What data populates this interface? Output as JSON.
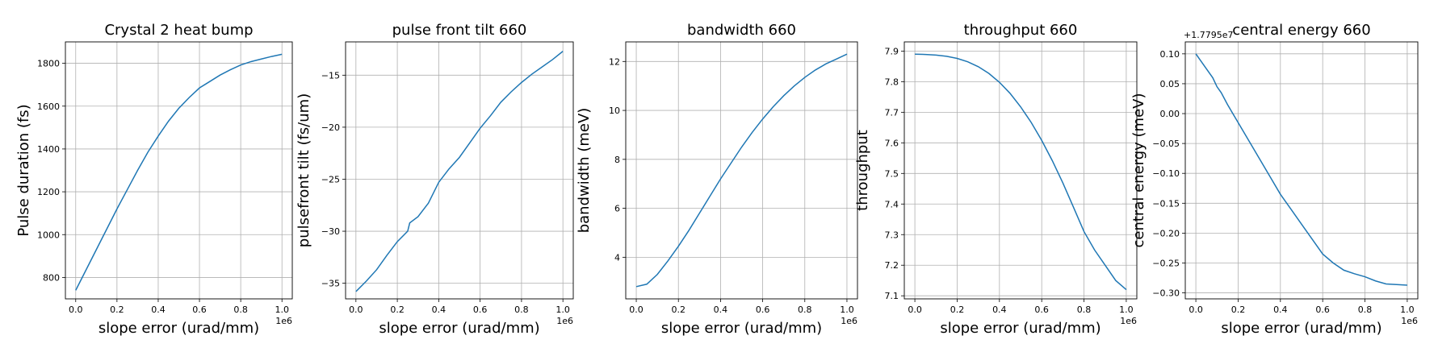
{
  "figure": {
    "background": "#ffffff",
    "line_color": "#1f77b4",
    "grid": true
  },
  "chart_data": [
    {
      "type": "line",
      "title": "Crystal 2 heat bump",
      "xlabel": "slope error (urad/mm)",
      "ylabel": "Pulse duration (fs)",
      "x_multiplier_label": "1e6",
      "y_offset_label": "",
      "xlim": [
        -0.05,
        1.05
      ],
      "ylim": [
        700,
        1900
      ],
      "xticks": [
        0.0,
        0.2,
        0.4,
        0.6,
        0.8,
        1.0
      ],
      "xtick_labels": [
        "0.0",
        "0.2",
        "0.4",
        "0.6",
        "0.8",
        "1.0"
      ],
      "yticks": [
        800,
        1000,
        1200,
        1400,
        1600,
        1800
      ],
      "ytick_labels": [
        "800",
        "1000",
        "1200",
        "1400",
        "1600",
        "1800"
      ],
      "series": [
        {
          "x": [
            0.0,
            0.05,
            0.1,
            0.15,
            0.2,
            0.25,
            0.3,
            0.35,
            0.4,
            0.45,
            0.5,
            0.55,
            0.6,
            0.65,
            0.7,
            0.75,
            0.8,
            0.85,
            0.9,
            0.95,
            1.0
          ],
          "y": [
            740,
            835,
            930,
            1025,
            1120,
            1210,
            1300,
            1385,
            1460,
            1530,
            1590,
            1640,
            1685,
            1715,
            1745,
            1770,
            1792,
            1808,
            1820,
            1832,
            1842
          ]
        }
      ]
    },
    {
      "type": "line",
      "title": "pulse front tilt 660",
      "xlabel": "slope error (urad/mm)",
      "ylabel": "pulsefront tilt (fs/um)",
      "x_multiplier_label": "1e6",
      "y_offset_label": "",
      "xlim": [
        -0.05,
        1.05
      ],
      "ylim": [
        -36.5,
        -11.8
      ],
      "xticks": [
        0.0,
        0.2,
        0.4,
        0.6,
        0.8,
        1.0
      ],
      "xtick_labels": [
        "0.0",
        "0.2",
        "0.4",
        "0.6",
        "0.8",
        "1.0"
      ],
      "yticks": [
        -35,
        -30,
        -25,
        -20,
        -15
      ],
      "ytick_labels": [
        "−35",
        "−30",
        "−25",
        "−20",
        "−15"
      ],
      "series": [
        {
          "x": [
            0.0,
            0.05,
            0.1,
            0.15,
            0.2,
            0.25,
            0.26,
            0.3,
            0.35,
            0.4,
            0.45,
            0.5,
            0.55,
            0.6,
            0.65,
            0.7,
            0.75,
            0.8,
            0.85,
            0.9,
            0.95,
            1.0
          ],
          "y": [
            -35.8,
            -34.8,
            -33.7,
            -32.3,
            -31.0,
            -30.0,
            -29.2,
            -28.6,
            -27.3,
            -25.3,
            -24.0,
            -22.9,
            -21.5,
            -20.1,
            -18.9,
            -17.6,
            -16.6,
            -15.7,
            -14.9,
            -14.2,
            -13.5,
            -12.7
          ]
        }
      ]
    },
    {
      "type": "line",
      "title": "bandwidth 660",
      "xlabel": "slope error (urad/mm)",
      "ylabel": "bandwidth (meV)",
      "x_multiplier_label": "1e6",
      "y_offset_label": "",
      "xlim": [
        -0.05,
        1.05
      ],
      "ylim": [
        2.3,
        12.8
      ],
      "xticks": [
        0.0,
        0.2,
        0.4,
        0.6,
        0.8,
        1.0
      ],
      "xtick_labels": [
        "0.0",
        "0.2",
        "0.4",
        "0.6",
        "0.8",
        "1.0"
      ],
      "yticks": [
        4,
        6,
        8,
        10,
        12
      ],
      "ytick_labels": [
        "4",
        "6",
        "8",
        "10",
        "12"
      ],
      "series": [
        {
          "x": [
            0.0,
            0.05,
            0.1,
            0.15,
            0.2,
            0.25,
            0.3,
            0.35,
            0.4,
            0.45,
            0.5,
            0.55,
            0.6,
            0.65,
            0.7,
            0.75,
            0.8,
            0.85,
            0.9,
            0.95,
            1.0
          ],
          "y": [
            2.8,
            2.9,
            3.3,
            3.85,
            4.45,
            5.1,
            5.8,
            6.5,
            7.2,
            7.85,
            8.5,
            9.1,
            9.65,
            10.15,
            10.6,
            11.0,
            11.35,
            11.65,
            11.9,
            12.1,
            12.3
          ]
        }
      ]
    },
    {
      "type": "line",
      "title": "throughput 660",
      "xlabel": "slope error (urad/mm)",
      "ylabel": "throughput",
      "x_multiplier_label": "1e6",
      "y_offset_label": "",
      "xlim": [
        -0.05,
        1.05
      ],
      "ylim": [
        7.09,
        7.93
      ],
      "xticks": [
        0.0,
        0.2,
        0.4,
        0.6,
        0.8,
        1.0
      ],
      "xtick_labels": [
        "0.0",
        "0.2",
        "0.4",
        "0.6",
        "0.8",
        "1.0"
      ],
      "yticks": [
        7.1,
        7.2,
        7.3,
        7.4,
        7.5,
        7.6,
        7.7,
        7.8,
        7.9
      ],
      "ytick_labels": [
        "7.1",
        "7.2",
        "7.3",
        "7.4",
        "7.5",
        "7.6",
        "7.7",
        "7.8",
        "7.9"
      ],
      "series": [
        {
          "x": [
            0.0,
            0.05,
            0.1,
            0.15,
            0.2,
            0.25,
            0.3,
            0.35,
            0.4,
            0.45,
            0.5,
            0.55,
            0.6,
            0.65,
            0.7,
            0.75,
            0.8,
            0.85,
            0.9,
            0.95,
            1.0
          ],
          "y": [
            7.89,
            7.889,
            7.887,
            7.883,
            7.876,
            7.865,
            7.849,
            7.827,
            7.798,
            7.762,
            7.718,
            7.667,
            7.608,
            7.542,
            7.469,
            7.39,
            7.31,
            7.25,
            7.2,
            7.15,
            7.12
          ]
        }
      ]
    },
    {
      "type": "line",
      "title": "central energy 660",
      "xlabel": "slope error (urad/mm)",
      "ylabel": "central energy (meV)",
      "x_multiplier_label": "1e6",
      "y_offset_label": "+1.7795e7",
      "xlim": [
        -0.05,
        1.05
      ],
      "ylim": [
        -0.31,
        0.12
      ],
      "xticks": [
        0.0,
        0.2,
        0.4,
        0.6,
        0.8,
        1.0
      ],
      "xtick_labels": [
        "0.0",
        "0.2",
        "0.4",
        "0.6",
        "0.8",
        "1.0"
      ],
      "yticks": [
        -0.3,
        -0.25,
        -0.2,
        -0.15,
        -0.1,
        -0.05,
        0.0,
        0.05,
        0.1
      ],
      "ytick_labels": [
        "−0.30",
        "−0.25",
        "−0.20",
        "−0.15",
        "−0.10",
        "−0.05",
        "0.00",
        "0.05",
        "0.10"
      ],
      "series": [
        {
          "x": [
            0.0,
            0.02,
            0.05,
            0.08,
            0.1,
            0.12,
            0.15,
            0.2,
            0.25,
            0.3,
            0.35,
            0.4,
            0.45,
            0.5,
            0.55,
            0.6,
            0.65,
            0.7,
            0.75,
            0.8,
            0.85,
            0.9,
            0.95,
            1.0
          ],
          "y": [
            0.1,
            0.09,
            0.075,
            0.06,
            0.045,
            0.035,
            0.015,
            -0.015,
            -0.045,
            -0.075,
            -0.105,
            -0.135,
            -0.16,
            -0.185,
            -0.21,
            -0.235,
            -0.25,
            -0.262,
            -0.268,
            -0.273,
            -0.28,
            -0.285,
            -0.286,
            -0.287
          ]
        }
      ]
    }
  ]
}
